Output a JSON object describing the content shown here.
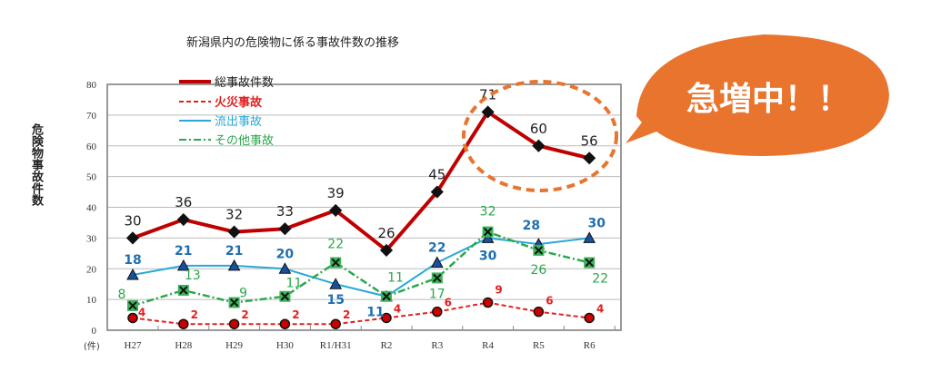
{
  "chart_data": {
    "type": "line",
    "title": "新潟県内の危険物に係る事故件数の推移",
    "ylabel": "危険物事故件数",
    "yunit": "(件)",
    "xlabel": "",
    "categories": [
      "H27",
      "H28",
      "H29",
      "H30",
      "R1/H31",
      "R2",
      "R3",
      "R4",
      "R5",
      "R6"
    ],
    "ylim": [
      0,
      80
    ],
    "yticks": [
      0,
      10,
      20,
      30,
      40,
      50,
      60,
      70,
      80
    ],
    "grid": true,
    "legend_position": "top-left",
    "series": [
      {
        "name": "総事故件数",
        "color": "#c00000",
        "values": [
          30,
          36,
          32,
          33,
          39,
          26,
          45,
          71,
          60,
          56
        ]
      },
      {
        "name": "火災事故",
        "color": "#e02020",
        "values": [
          4,
          2,
          2,
          2,
          2,
          4,
          6,
          9,
          6,
          4
        ]
      },
      {
        "name": "流出事故",
        "color": "#29a8d8",
        "values": [
          18,
          21,
          21,
          20,
          15,
          11,
          22,
          30,
          28,
          30
        ]
      },
      {
        "name": "その他事故",
        "color": "#2aa84a",
        "values": [
          8,
          13,
          9,
          11,
          22,
          11,
          17,
          32,
          26,
          22
        ]
      }
    ],
    "annotation": "急増中！！",
    "annotation_color": "#e8742e"
  }
}
